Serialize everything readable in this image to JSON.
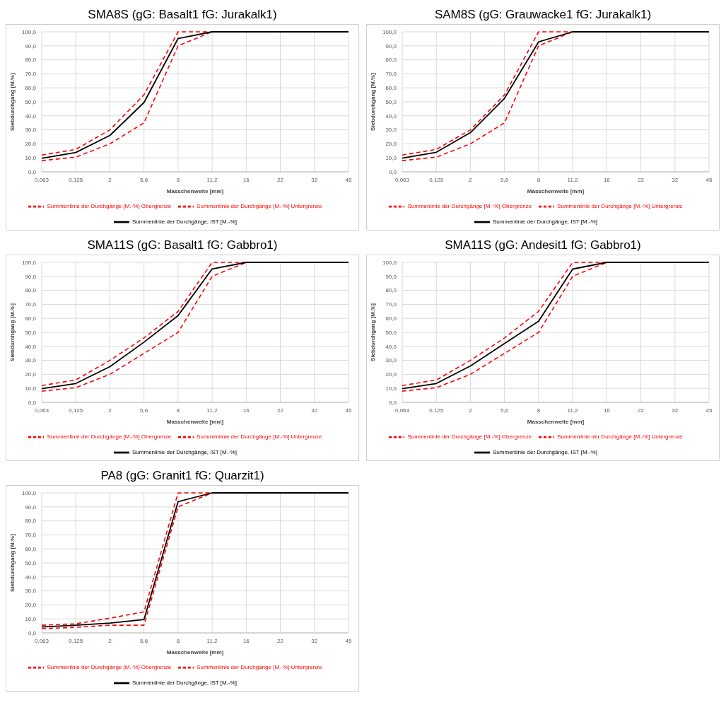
{
  "chart_data": [
    {
      "type": "line",
      "title": "SMA8S (gG: Basalt1 fG: Jurakalk1)",
      "xlabel": "Masschenweite [mm]",
      "ylabel": "Siebdurchgang [M.%]",
      "categories": [
        "0,063",
        "0,125",
        "2",
        "5,6",
        "8",
        "11,2",
        "16",
        "22",
        "32",
        "45"
      ],
      "ylim": [
        0,
        100
      ],
      "yticks": [
        {
          "value": 0,
          "label": "0,0"
        },
        {
          "value": 10,
          "label": "10,0"
        },
        {
          "value": 20,
          "label": "20,0"
        },
        {
          "value": 30,
          "label": "30,0"
        },
        {
          "value": 40,
          "label": "40,0"
        },
        {
          "value": 50,
          "label": "50,0"
        },
        {
          "value": 60,
          "label": "60,0"
        },
        {
          "value": 70,
          "label": "70,0"
        },
        {
          "value": 80,
          "label": "80,0"
        },
        {
          "value": 90,
          "label": "90,0"
        },
        {
          "value": 100,
          "label": "100,0"
        }
      ],
      "grid": true,
      "legend": "bottom",
      "marker": "none",
      "series": [
        {
          "name": "Summenlinie der Durchgänge [M.-%] Obergrenze",
          "color": "#ff0000",
          "line_style": "dashed",
          "values": [
            12,
            16,
            30,
            55,
            100,
            100,
            null,
            null,
            null,
            null
          ]
        },
        {
          "name": "Summenlinie der Durchgänge [M.-%] Untergrenze",
          "color": "#ff0000",
          "line_style": "dashed",
          "values": [
            8,
            10.5,
            20,
            35,
            90,
            100,
            null,
            null,
            null,
            null
          ]
        },
        {
          "name": "Summenlinie der Durchgänge, IST [M.-%]",
          "color": "#000000",
          "line_style": "solid",
          "values": [
            9.7,
            13.8,
            26,
            49.5,
            95.2,
            100,
            100,
            100,
            100,
            100
          ]
        }
      ]
    },
    {
      "type": "line",
      "title": "SAM8S (gG: Grauwacke1 fG: Jurakalk1)",
      "xlabel": "Masschenweite [mm]",
      "ylabel": "Siebdurchgang [M.%]",
      "categories": [
        "0,063",
        "0,125",
        "2",
        "5,6",
        "8",
        "11,2",
        "16",
        "22",
        "32",
        "45"
      ],
      "ylim": [
        0,
        100
      ],
      "yticks": [
        {
          "value": 0,
          "label": "0,0"
        },
        {
          "value": 10,
          "label": "10,0"
        },
        {
          "value": 20,
          "label": "20,0"
        },
        {
          "value": 30,
          "label": "30,0"
        },
        {
          "value": 40,
          "label": "40,0"
        },
        {
          "value": 50,
          "label": "50,0"
        },
        {
          "value": 60,
          "label": "60,0"
        },
        {
          "value": 70,
          "label": "70,0"
        },
        {
          "value": 80,
          "label": "80,0"
        },
        {
          "value": 90,
          "label": "90,0"
        },
        {
          "value": 100,
          "label": "100,0"
        }
      ],
      "grid": true,
      "legend": "bottom",
      "marker": "none",
      "series": [
        {
          "name": "Summenlinie der Durchgänge [M.-%] Obergrenze",
          "color": "#ff0000",
          "line_style": "dashed",
          "values": [
            12,
            16,
            30,
            55,
            100,
            100,
            null,
            null,
            null,
            null
          ]
        },
        {
          "name": "Summenlinie der Durchgänge [M.-%] Untergrenze",
          "color": "#ff0000",
          "line_style": "dashed",
          "values": [
            8,
            10.5,
            20,
            35,
            90,
            100,
            null,
            null,
            null,
            null
          ]
        },
        {
          "name": "Summenlinie der Durchgänge, IST [M.-%]",
          "color": "#000000",
          "line_style": "solid",
          "values": [
            9.8,
            14,
            28,
            52.5,
            92.8,
            100,
            100,
            100,
            100,
            100
          ]
        }
      ]
    },
    {
      "type": "line",
      "title": "SMA11S (gG: Basalt1 fG: Gabbro1)",
      "xlabel": "Masschenweite [mm]",
      "ylabel": "Siebdurchgang [M.%]",
      "categories": [
        "0,063",
        "0,125",
        "2",
        "5,6",
        "8",
        "11,2",
        "16",
        "22",
        "32",
        "45"
      ],
      "ylim": [
        0,
        100
      ],
      "yticks": [
        {
          "value": 0,
          "label": "0,0"
        },
        {
          "value": 10,
          "label": "10,0"
        },
        {
          "value": 20,
          "label": "20,0"
        },
        {
          "value": 30,
          "label": "30,0"
        },
        {
          "value": 40,
          "label": "40,0"
        },
        {
          "value": 50,
          "label": "50,0"
        },
        {
          "value": 60,
          "label": "60,0"
        },
        {
          "value": 70,
          "label": "70,0"
        },
        {
          "value": 80,
          "label": "80,0"
        },
        {
          "value": 90,
          "label": "90,0"
        },
        {
          "value": 100,
          "label": "100,0"
        }
      ],
      "grid": true,
      "legend": "bottom",
      "marker": "none",
      "series": [
        {
          "name": "Summenlinie der Durchgänge [M.-%] Obergrenze",
          "color": "#ff0000",
          "line_style": "dashed",
          "values": [
            12,
            16,
            30,
            46,
            65,
            100,
            100,
            null,
            null,
            null
          ]
        },
        {
          "name": "Summenlinie der Durchgänge [M.-%] Untergrenze",
          "color": "#ff0000",
          "line_style": "dashed",
          "values": [
            8,
            10.5,
            20,
            35,
            50,
            90,
            100,
            null,
            null,
            null
          ]
        },
        {
          "name": "Summenlinie der Durchgänge, IST [M.-%]",
          "color": "#000000",
          "line_style": "solid",
          "values": [
            9.8,
            13.5,
            25.5,
            43,
            62,
            95.3,
            100,
            100,
            100,
            100
          ]
        }
      ]
    },
    {
      "type": "line",
      "title": "SMA11S (gG: Andesit1 fG: Gabbro1)",
      "xlabel": "Masschenweite [mm]",
      "ylabel": "Siebdurchgang [M.%]",
      "categories": [
        "0,063",
        "0,125",
        "2",
        "5,6",
        "8",
        "11,2",
        "16",
        "22",
        "32",
        "45"
      ],
      "ylim": [
        0,
        100
      ],
      "yticks": [
        {
          "value": 0,
          "label": "0,0"
        },
        {
          "value": 10,
          "label": "10,0"
        },
        {
          "value": 20,
          "label": "20,0"
        },
        {
          "value": 30,
          "label": "30,0"
        },
        {
          "value": 40,
          "label": "40,0"
        },
        {
          "value": 50,
          "label": "50,0"
        },
        {
          "value": 60,
          "label": "60,0"
        },
        {
          "value": 70,
          "label": "70,0"
        },
        {
          "value": 80,
          "label": "80,0"
        },
        {
          "value": 90,
          "label": "90,0"
        },
        {
          "value": 100,
          "label": "100,0"
        }
      ],
      "grid": true,
      "legend": "bottom",
      "marker": "none",
      "series": [
        {
          "name": "Summenlinie der Durchgänge [M.-%] Obergrenze",
          "color": "#ff0000",
          "line_style": "dashed",
          "values": [
            12,
            16,
            30,
            46,
            65,
            100,
            100,
            null,
            null,
            null
          ]
        },
        {
          "name": "Summenlinie der Durchgänge [M.-%] Untergrenze",
          "color": "#ff0000",
          "line_style": "dashed",
          "values": [
            8,
            10.5,
            20,
            35,
            50,
            90,
            100,
            null,
            null,
            null
          ]
        },
        {
          "name": "Summenlinie der Durchgänge, IST [M.-%]",
          "color": "#000000",
          "line_style": "solid",
          "values": [
            9.8,
            13.5,
            26,
            42,
            58,
            95.2,
            100,
            100,
            100,
            100
          ]
        }
      ]
    },
    {
      "type": "line",
      "title": "PA8 (gG: Granit1 fG: Quarzit1)",
      "xlabel": "Masschenweite [mm]",
      "ylabel": "Siebdurchgang [M.%]",
      "categories": [
        "0,063",
        "0,125",
        "2",
        "5,6",
        "8",
        "11,2",
        "16",
        "22",
        "32",
        "45"
      ],
      "ylim": [
        0,
        100
      ],
      "yticks": [
        {
          "value": 0,
          "label": "0,0"
        },
        {
          "value": 10,
          "label": "10,0"
        },
        {
          "value": 20,
          "label": "20,0"
        },
        {
          "value": 30,
          "label": "30,0"
        },
        {
          "value": 40,
          "label": "40,0"
        },
        {
          "value": 50,
          "label": "50,0"
        },
        {
          "value": 60,
          "label": "60,0"
        },
        {
          "value": 70,
          "label": "70,0"
        },
        {
          "value": 80,
          "label": "80,0"
        },
        {
          "value": 90,
          "label": "90,0"
        },
        {
          "value": 100,
          "label": "100,0"
        }
      ],
      "grid": true,
      "legend": "bottom",
      "marker": "none",
      "series": [
        {
          "name": "Summenlinie der Durchgänge [M.-%] Obergrenze",
          "color": "#ff0000",
          "line_style": "dashed",
          "values": [
            5.5,
            6.5,
            10.5,
            15,
            100,
            100,
            null,
            null,
            null,
            null
          ]
        },
        {
          "name": "Summenlinie der Durchgänge [M.-%] Untergrenze",
          "color": "#ff0000",
          "line_style": "dashed",
          "values": [
            3,
            4,
            5.5,
            5.5,
            90,
            100,
            null,
            null,
            null,
            null
          ]
        },
        {
          "name": "Summenlinie der Durchgänge, IST [M.-%]",
          "color": "#000000",
          "line_style": "solid",
          "values": [
            4.2,
            5.5,
            7,
            9.5,
            93.7,
            100,
            100,
            100,
            100,
            100
          ]
        }
      ]
    }
  ]
}
